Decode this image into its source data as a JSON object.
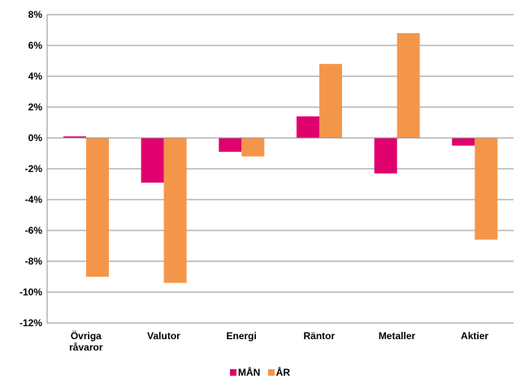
{
  "chart_data": {
    "type": "bar",
    "categories": [
      "Övriga\nråvaror",
      "Valutor",
      "Energi",
      "Räntor",
      "Metaller",
      "Aktier"
    ],
    "series": [
      {
        "name": "MÅN",
        "color": "#e0006e",
        "values": [
          0.1,
          -2.9,
          -0.9,
          1.4,
          -2.3,
          -0.5
        ]
      },
      {
        "name": "ÅR",
        "color": "#f4964a",
        "values": [
          -9.0,
          -9.4,
          -1.2,
          4.8,
          6.8,
          -6.6
        ]
      }
    ],
    "ylim": [
      -12,
      8
    ],
    "yticks": [
      8,
      6,
      4,
      2,
      0,
      -2,
      -4,
      -6,
      -8,
      -10,
      -12
    ],
    "ytick_format": "percent",
    "grid": true,
    "legend_position": "bottom",
    "title": "",
    "xlabel": "",
    "ylabel": ""
  }
}
